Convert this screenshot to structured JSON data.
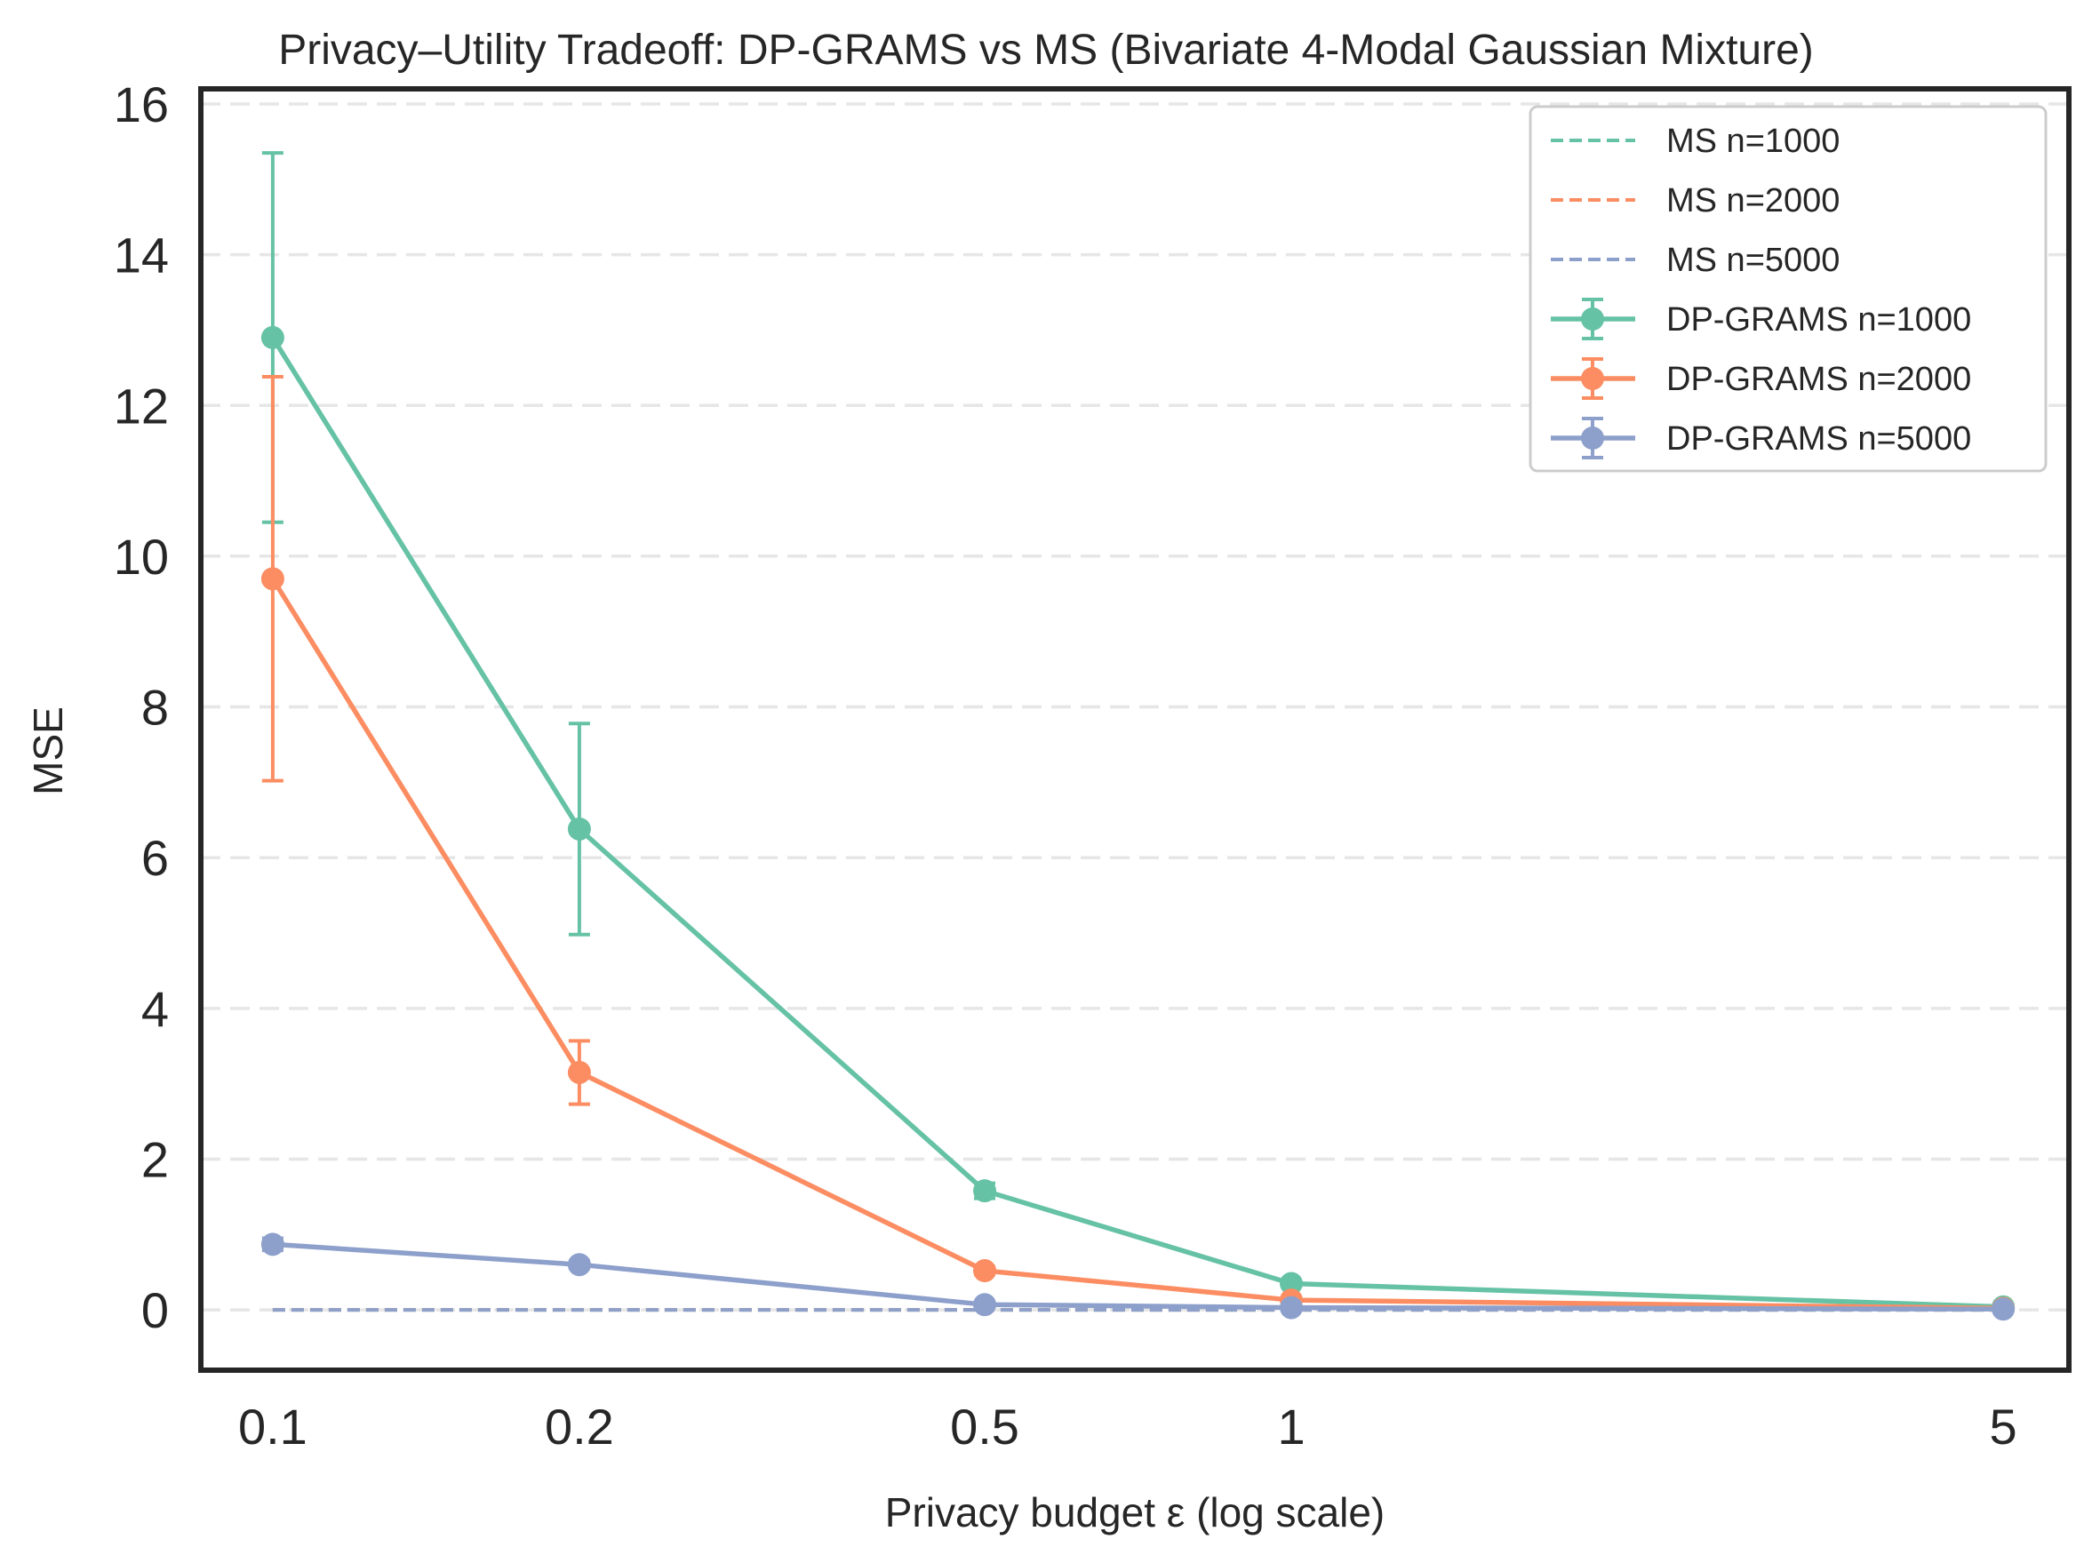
{
  "chart_data": {
    "type": "line",
    "title": "Privacy–Utility Tradeoff: DP-GRAMS vs MS (Bivariate 4-Modal Gaussian Mixture)",
    "xlabel": "Privacy budget ε (log scale)",
    "ylabel": "MSE",
    "x_scale": "log",
    "x": [
      0.1,
      0.2,
      0.5,
      1,
      5
    ],
    "x_tick_labels": [
      "0.1",
      "0.2",
      "0.5",
      "1",
      "5"
    ],
    "y_ticks": [
      0,
      2,
      4,
      6,
      8,
      10,
      12,
      14,
      16
    ],
    "xlim": [
      0.085,
      5.8
    ],
    "ylim": [
      -0.8,
      16.2
    ],
    "grid": "horizontal dashed",
    "legend_position": "top-right",
    "series": [
      {
        "name": "MS n=1000",
        "style": "dashed",
        "color": "#66c2a5",
        "values": [
          0.0,
          0.0,
          0.0,
          0.0,
          0.0
        ]
      },
      {
        "name": "MS n=2000",
        "style": "dashed",
        "color": "#fc8d62",
        "values": [
          0.0,
          0.0,
          0.0,
          0.0,
          0.0
        ]
      },
      {
        "name": "MS n=5000",
        "style": "dashed",
        "color": "#8da0cb",
        "values": [
          0.0,
          0.0,
          0.0,
          0.0,
          0.0
        ]
      },
      {
        "name": "DP-GRAMS n=1000",
        "style": "solid-marker",
        "color": "#66c2a5",
        "values": [
          12.9,
          6.38,
          1.58,
          0.35,
          0.04
        ],
        "error": [
          2.45,
          1.4,
          0.1,
          0.03,
          0.01
        ]
      },
      {
        "name": "DP-GRAMS n=2000",
        "style": "solid-marker",
        "color": "#fc8d62",
        "values": [
          9.7,
          3.15,
          0.52,
          0.13,
          0.02
        ],
        "error": [
          2.68,
          0.42,
          0.05,
          0.02,
          0.005
        ]
      },
      {
        "name": "DP-GRAMS n=5000",
        "style": "solid-marker",
        "color": "#8da0cb",
        "values": [
          0.87,
          0.6,
          0.07,
          0.03,
          0.01
        ],
        "error": [
          0.08,
          0.05,
          0.01,
          0.005,
          0.002
        ]
      }
    ]
  }
}
